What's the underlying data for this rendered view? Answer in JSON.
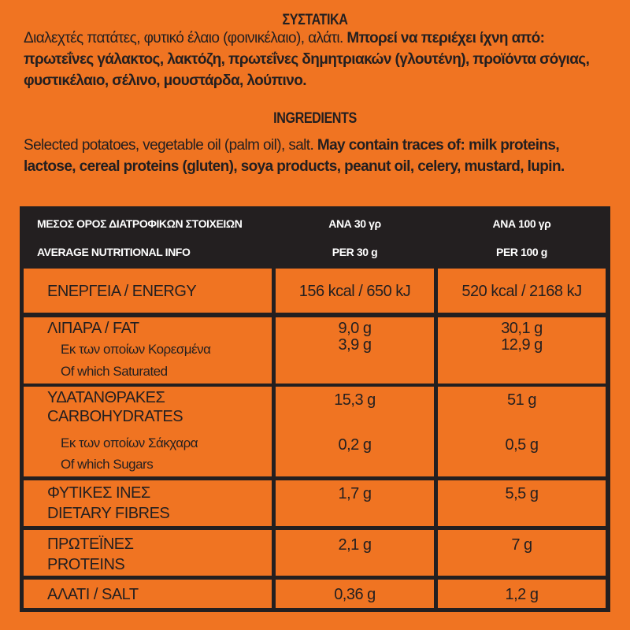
{
  "ingredients_gr": {
    "title": "ΣΥΣΤΑΤΙΚΑ",
    "text": "Διαλεχτές πατάτες, φυτικό έλαιο (φοινικέλαιο), αλάτι.",
    "allergens": "Μπορεί να περιέχει ίχνη από: πρωτεΐνες γάλακτος, λακτόζη, πρωτεΐνες δημητριακών (γλουτένη), προϊόντα σόγιας, φυστικέλαιο, σέλινο, μουστάρδα, λούπινο."
  },
  "ingredients_en": {
    "title": "INGREDIENTS",
    "text": "Selected potatoes, vegetable oil (palm oil), salt.",
    "allergens": "May contain traces of: milk proteins, lactose, cereal proteins (gluten), soya products, peanut oil, celery, mustard, lupin."
  },
  "table": {
    "header": {
      "label_gr": "ΜΕΣΟΣ ΟΡΟΣ ΔΙΑΤΡΟΦΙΚΩΝ ΣΤΟΙΧΕΙΩΝ",
      "label_en": "AVERAGE NUTRITIONAL INFO",
      "col1_gr": "ΑΝΑ 30 γρ",
      "col1_en": "PER 30 g",
      "col2_gr": "ΑΝΑ 100 γρ",
      "col2_en": "PER 100 g"
    },
    "energy": {
      "label": "ΕΝΕΡΓΕΙΑ / ENERGY",
      "v30": "156 kcal / 650 kJ",
      "v100": "520 kcal / 2168 kJ"
    },
    "fat": {
      "label": "ΛΙΠΑΡΑ / FAT",
      "sub_gr": "Εκ των οποίων Κορεσμένα",
      "sub_en": "Of which Saturated",
      "v30": "9,0 g",
      "v100": "30,1 g",
      "sub_v30": "3,9 g",
      "sub_v100": "12,9 g"
    },
    "carbs": {
      "label_gr": "ΥΔΑΤΑΝΘΡΑΚΕΣ",
      "label_en": "CARBOHYDRATES",
      "sub_gr": "Εκ των οποίων Σάκχαρα",
      "sub_en": "Of which Sugars",
      "v30": "15,3 g",
      "v100": "51 g",
      "sub_v30": "0,2 g",
      "sub_v100": "0,5 g"
    },
    "fibres": {
      "label_gr": "ΦΥΤΙΚΕΣ ΙΝΕΣ",
      "label_en": "DIETARY FIBRES",
      "v30": "1,7 g",
      "v100": "5,5 g"
    },
    "proteins": {
      "label_gr": "ΠΡΩΤΕΪΝΕΣ",
      "label_en": "PROTEINS",
      "v30": "2,1 g",
      "v100": "7 g"
    },
    "salt": {
      "label": "ΑΛΑΤΙ / SALT",
      "v30": "0,36 g",
      "v100": "1,2 g"
    }
  }
}
